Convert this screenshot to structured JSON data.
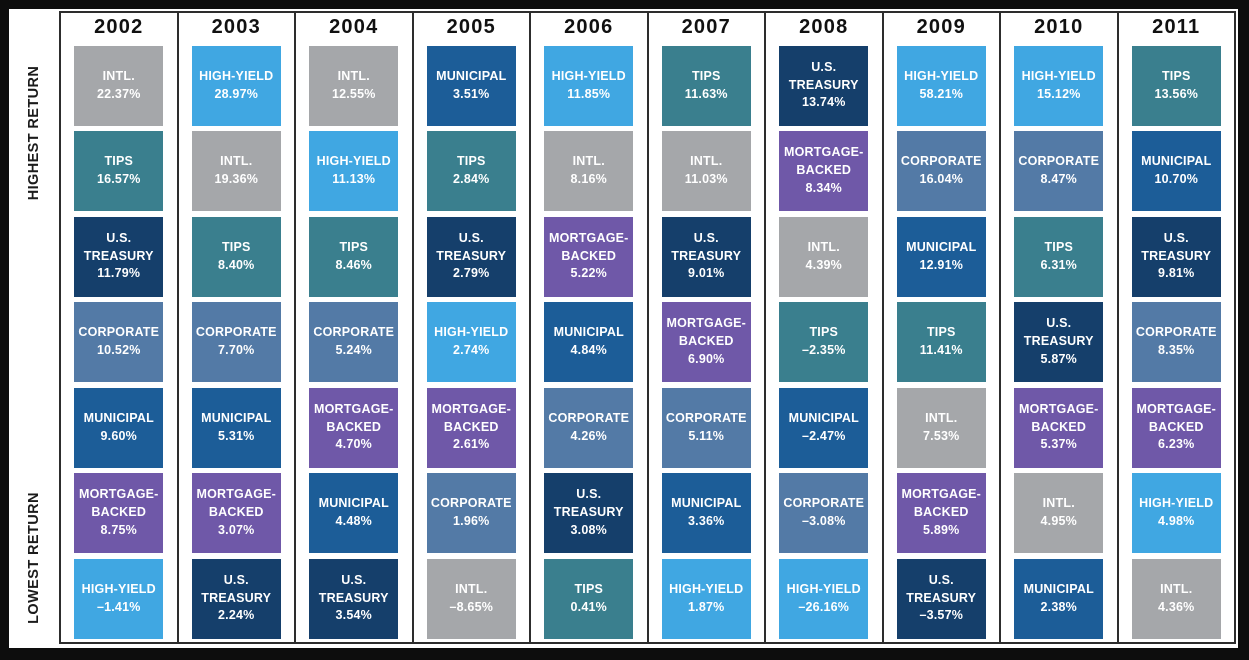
{
  "left_axis": {
    "top_label": "HIGHEST RETURN",
    "bottom_label": "LOWEST RETURN"
  },
  "asset_colors": {
    "INTL.": "#a5a7aa",
    "HIGH-YIELD": "#40a7e2",
    "TIPS": "#3a7f8e",
    "U.S. TREASURY": "#153f6b",
    "CORPORATE": "#537aa6",
    "MUNICIPAL": "#1c5d98",
    "MORTGAGE-BACKED": "#6f58a8"
  },
  "chart_data": {
    "type": "table",
    "description": "Annual returns of seven bond asset classes, ranked highest to lowest within each year",
    "categories": [
      "2002",
      "2003",
      "2004",
      "2005",
      "2006",
      "2007",
      "2008",
      "2009",
      "2010",
      "2011"
    ],
    "row_order": "highest return (top) to lowest return (bottom)",
    "legend_position": "none",
    "columns": [
      {
        "year": "2002",
        "cells": [
          {
            "label": "INTL.",
            "value": "22.37%",
            "numeric": 22.37
          },
          {
            "label": "TIPS",
            "value": "16.57%",
            "numeric": 16.57
          },
          {
            "label": "U.S. TREASURY",
            "value": "11.79%",
            "numeric": 11.79
          },
          {
            "label": "CORPORATE",
            "value": "10.52%",
            "numeric": 10.52
          },
          {
            "label": "MUNICIPAL",
            "value": "9.60%",
            "numeric": 9.6
          },
          {
            "label": "MORTGAGE-BACKED",
            "value": "8.75%",
            "numeric": 8.75
          },
          {
            "label": "HIGH-YIELD",
            "value": "–1.41%",
            "numeric": -1.41
          }
        ]
      },
      {
        "year": "2003",
        "cells": [
          {
            "label": "HIGH-YIELD",
            "value": "28.97%",
            "numeric": 28.97
          },
          {
            "label": "INTL.",
            "value": "19.36%",
            "numeric": 19.36
          },
          {
            "label": "TIPS",
            "value": "8.40%",
            "numeric": 8.4
          },
          {
            "label": "CORPORATE",
            "value": "7.70%",
            "numeric": 7.7
          },
          {
            "label": "MUNICIPAL",
            "value": "5.31%",
            "numeric": 5.31
          },
          {
            "label": "MORTGAGE-BACKED",
            "value": "3.07%",
            "numeric": 3.07
          },
          {
            "label": "U.S. TREASURY",
            "value": "2.24%",
            "numeric": 2.24
          }
        ]
      },
      {
        "year": "2004",
        "cells": [
          {
            "label": "INTL.",
            "value": "12.55%",
            "numeric": 12.55
          },
          {
            "label": "HIGH-YIELD",
            "value": "11.13%",
            "numeric": 11.13
          },
          {
            "label": "TIPS",
            "value": "8.46%",
            "numeric": 8.46
          },
          {
            "label": "CORPORATE",
            "value": "5.24%",
            "numeric": 5.24
          },
          {
            "label": "MORTGAGE-BACKED",
            "value": "4.70%",
            "numeric": 4.7
          },
          {
            "label": "MUNICIPAL",
            "value": "4.48%",
            "numeric": 4.48
          },
          {
            "label": "U.S. TREASURY",
            "value": "3.54%",
            "numeric": 3.54
          }
        ]
      },
      {
        "year": "2005",
        "cells": [
          {
            "label": "MUNICIPAL",
            "value": "3.51%",
            "numeric": 3.51
          },
          {
            "label": "TIPS",
            "value": "2.84%",
            "numeric": 2.84
          },
          {
            "label": "U.S. TREASURY",
            "value": "2.79%",
            "numeric": 2.79
          },
          {
            "label": "HIGH-YIELD",
            "value": "2.74%",
            "numeric": 2.74
          },
          {
            "label": "MORTGAGE-BACKED",
            "value": "2.61%",
            "numeric": 2.61
          },
          {
            "label": "CORPORATE",
            "value": "1.96%",
            "numeric": 1.96
          },
          {
            "label": "INTL.",
            "value": "–8.65%",
            "numeric": -8.65
          }
        ]
      },
      {
        "year": "2006",
        "cells": [
          {
            "label": "HIGH-YIELD",
            "value": "11.85%",
            "numeric": 11.85
          },
          {
            "label": "INTL.",
            "value": "8.16%",
            "numeric": 8.16
          },
          {
            "label": "MORTGAGE-BACKED",
            "value": "5.22%",
            "numeric": 5.22
          },
          {
            "label": "MUNICIPAL",
            "value": "4.84%",
            "numeric": 4.84
          },
          {
            "label": "CORPORATE",
            "value": "4.26%",
            "numeric": 4.26
          },
          {
            "label": "U.S. TREASURY",
            "value": "3.08%",
            "numeric": 3.08
          },
          {
            "label": "TIPS",
            "value": "0.41%",
            "numeric": 0.41
          }
        ]
      },
      {
        "year": "2007",
        "cells": [
          {
            "label": "TIPS",
            "value": "11.63%",
            "numeric": 11.63
          },
          {
            "label": "INTL.",
            "value": "11.03%",
            "numeric": 11.03
          },
          {
            "label": "U.S. TREASURY",
            "value": "9.01%",
            "numeric": 9.01
          },
          {
            "label": "MORTGAGE-BACKED",
            "value": "6.90%",
            "numeric": 6.9
          },
          {
            "label": "CORPORATE",
            "value": "5.11%",
            "numeric": 5.11
          },
          {
            "label": "MUNICIPAL",
            "value": "3.36%",
            "numeric": 3.36
          },
          {
            "label": "HIGH-YIELD",
            "value": "1.87%",
            "numeric": 1.87
          }
        ]
      },
      {
        "year": "2008",
        "cells": [
          {
            "label": "U.S. TREASURY",
            "value": "13.74%",
            "numeric": 13.74
          },
          {
            "label": "MORTGAGE-BACKED",
            "value": "8.34%",
            "numeric": 8.34
          },
          {
            "label": "INTL.",
            "value": "4.39%",
            "numeric": 4.39
          },
          {
            "label": "TIPS",
            "value": "–2.35%",
            "numeric": -2.35
          },
          {
            "label": "MUNICIPAL",
            "value": "–2.47%",
            "numeric": -2.47
          },
          {
            "label": "CORPORATE",
            "value": "–3.08%",
            "numeric": -3.08
          },
          {
            "label": "HIGH-YIELD",
            "value": "–26.16%",
            "numeric": -26.16
          }
        ]
      },
      {
        "year": "2009",
        "cells": [
          {
            "label": "HIGH-YIELD",
            "value": "58.21%",
            "numeric": 58.21
          },
          {
            "label": "CORPORATE",
            "value": "16.04%",
            "numeric": 16.04
          },
          {
            "label": "MUNICIPAL",
            "value": "12.91%",
            "numeric": 12.91
          },
          {
            "label": "TIPS",
            "value": "11.41%",
            "numeric": 11.41
          },
          {
            "label": "INTL.",
            "value": "7.53%",
            "numeric": 7.53
          },
          {
            "label": "MORTGAGE-BACKED",
            "value": "5.89%",
            "numeric": 5.89
          },
          {
            "label": "U.S. TREASURY",
            "value": "–3.57%",
            "numeric": -3.57
          }
        ]
      },
      {
        "year": "2010",
        "cells": [
          {
            "label": "HIGH-YIELD",
            "value": "15.12%",
            "numeric": 15.12
          },
          {
            "label": "CORPORATE",
            "value": "8.47%",
            "numeric": 8.47
          },
          {
            "label": "TIPS",
            "value": "6.31%",
            "numeric": 6.31
          },
          {
            "label": "U.S. TREASURY",
            "value": "5.87%",
            "numeric": 5.87
          },
          {
            "label": "MORTGAGE-BACKED",
            "value": "5.37%",
            "numeric": 5.37
          },
          {
            "label": "INTL.",
            "value": "4.95%",
            "numeric": 4.95
          },
          {
            "label": "MUNICIPAL",
            "value": "2.38%",
            "numeric": 2.38
          }
        ]
      },
      {
        "year": "2011",
        "cells": [
          {
            "label": "TIPS",
            "value": "13.56%",
            "numeric": 13.56
          },
          {
            "label": "MUNICIPAL",
            "value": "10.70%",
            "numeric": 10.7
          },
          {
            "label": "U.S. TREASURY",
            "value": "9.81%",
            "numeric": 9.81
          },
          {
            "label": "CORPORATE",
            "value": "8.35%",
            "numeric": 8.35
          },
          {
            "label": "MORTGAGE-BACKED",
            "value": "6.23%",
            "numeric": 6.23
          },
          {
            "label": "HIGH-YIELD",
            "value": "4.98%",
            "numeric": 4.98
          },
          {
            "label": "INTL.",
            "value": "4.36%",
            "numeric": 4.36
          }
        ]
      }
    ]
  }
}
